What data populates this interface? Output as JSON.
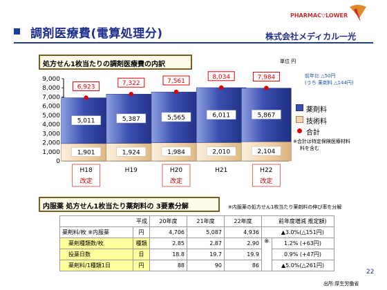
{
  "header": {
    "title": "調剤医療費(電算処理分)",
    "logo_text": "PHARMAC▽LOWER",
    "company": "株式会社メディカル一光"
  },
  "section1": {
    "title": "処方せん1枚当たりの調剤医療費の内訳",
    "unit": "単位 円",
    "note_line1": "前年比 △50円",
    "note_line2": "(うち 薬剤料 △144円)"
  },
  "chart_data": {
    "type": "bar",
    "stacked": true,
    "categories": [
      "H18",
      "H19",
      "H20",
      "H21",
      "H22"
    ],
    "category_sublabels": [
      "改定",
      "",
      "改定",
      "",
      "改定"
    ],
    "series": [
      {
        "name": "技術料",
        "values": [
          1901,
          1924,
          1984,
          2010,
          2104
        ]
      },
      {
        "name": "薬剤料",
        "values": [
          5011,
          5387,
          5565,
          6011,
          5867
        ]
      }
    ],
    "totals": {
      "name": "合計",
      "values": [
        6923,
        7322,
        7561,
        8034,
        7984
      ]
    },
    "ylim": [
      0,
      9000
    ],
    "yticks": [
      "0",
      "1,000",
      "2,000",
      "3,000",
      "4,000",
      "5,000",
      "6,000",
      "7,000",
      "8,000",
      "9,000"
    ],
    "labels": {
      "gijutsu": [
        "1,901",
        "1,924",
        "1,984",
        "2,010",
        "2,104"
      ],
      "yakuzai": [
        "5,011",
        "5,387",
        "5,565",
        "6,011",
        "5,867"
      ],
      "total": [
        "6,923",
        "7,322",
        "7,561",
        "8,034",
        "7,984"
      ]
    },
    "legend": [
      "薬剤料",
      "技術料",
      "合計"
    ],
    "legend_note_line1": "※合計は特定保険医療材料",
    "legend_note_line2": "料を含む",
    "colors": {
      "yakuzai": "#3a4fb0",
      "gijutsu": "#f2d4a8",
      "total": "#e00000",
      "label_box": "#e00000"
    }
  },
  "section2": {
    "title": "内服薬 処方せん1枚当たり薬剤料の 3要素分解",
    "note": "※内服薬の処方せん1枚当たり薬剤料の伸び率を分解"
  },
  "table": {
    "headers": [
      "平成",
      "20年度",
      "21年度",
      "22年度",
      "前年度増減 推定額)"
    ],
    "rows": [
      {
        "label": "薬剤料/枚 ※内服薬",
        "unit": "円",
        "v": [
          "4,706",
          "5,087",
          "4,936"
        ],
        "change": "▲3.0%(△151円)",
        "hl": false
      },
      {
        "label": "薬剤種類数/枚",
        "unit": "種類",
        "v": [
          "2.85",
          "2.87",
          "2.90"
        ],
        "change": "1.2% (+63円)",
        "hl": true
      },
      {
        "label": "投薬日数",
        "unit": "日",
        "v": [
          "18.8",
          "19.7",
          "19.9"
        ],
        "change": "0.9% (+47円)",
        "hl": true
      },
      {
        "label": "薬剤料/1種類1日",
        "unit": "円",
        "v": [
          "88",
          "90",
          "86"
        ],
        "change": "▲5.0%(△261円)",
        "hl": true
      }
    ],
    "mark": "※"
  },
  "page_number": "22",
  "source": "出所:厚生労働省"
}
